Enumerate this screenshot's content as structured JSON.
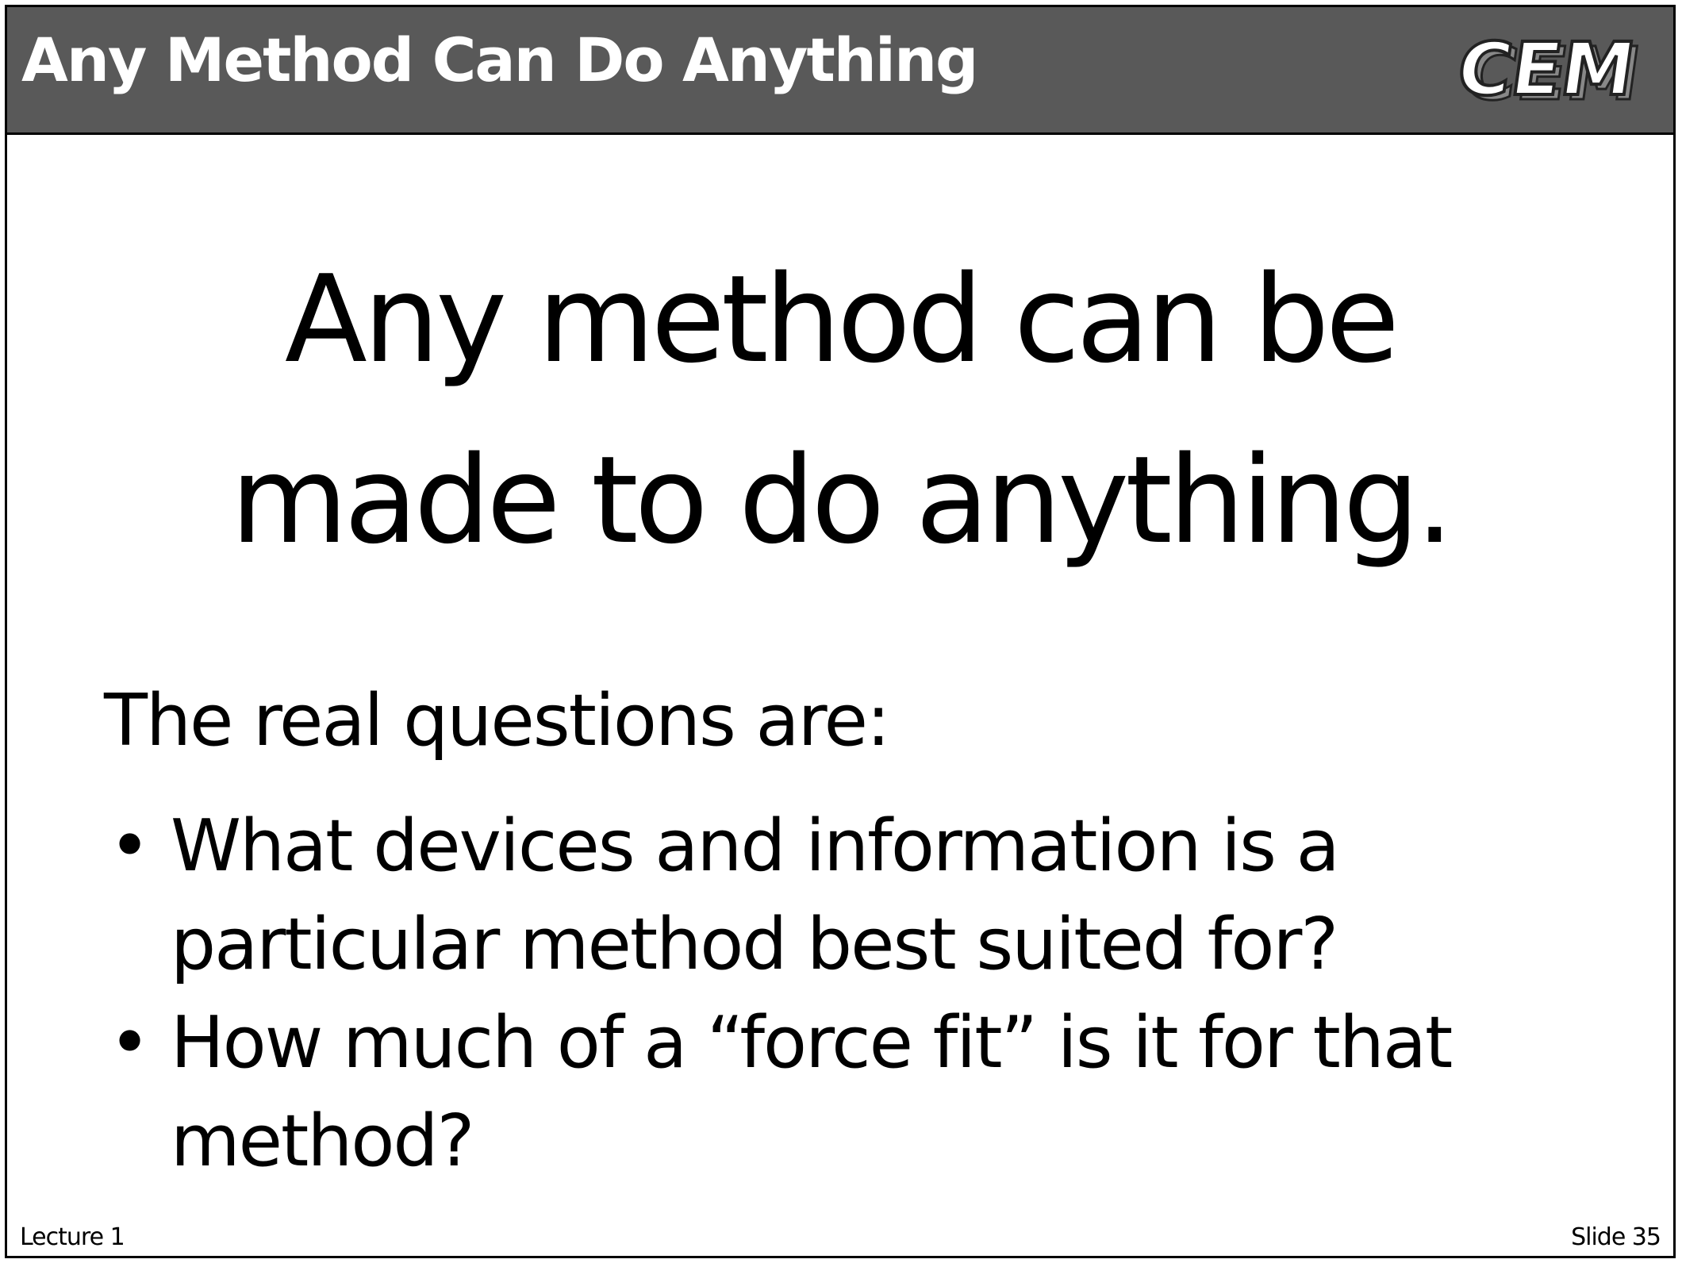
{
  "header": {
    "title": "Any Method Can Do Anything",
    "logo_text": "CEM"
  },
  "headline": {
    "line1": "Any method can be",
    "line2": "made to do anything."
  },
  "body": {
    "intro": "The real questions are:",
    "bullets": [
      {
        "line1": "What devices and information is a",
        "line2": "particular method best suited for?"
      },
      {
        "line1": "How much of a “force fit” is it for that",
        "line2": "method?"
      }
    ]
  },
  "footer": {
    "left": "Lecture 1",
    "right": "Slide 35"
  },
  "colors": {
    "titlebar": "#595959",
    "title_text": "#ffffff",
    "body_text": "#000000"
  }
}
